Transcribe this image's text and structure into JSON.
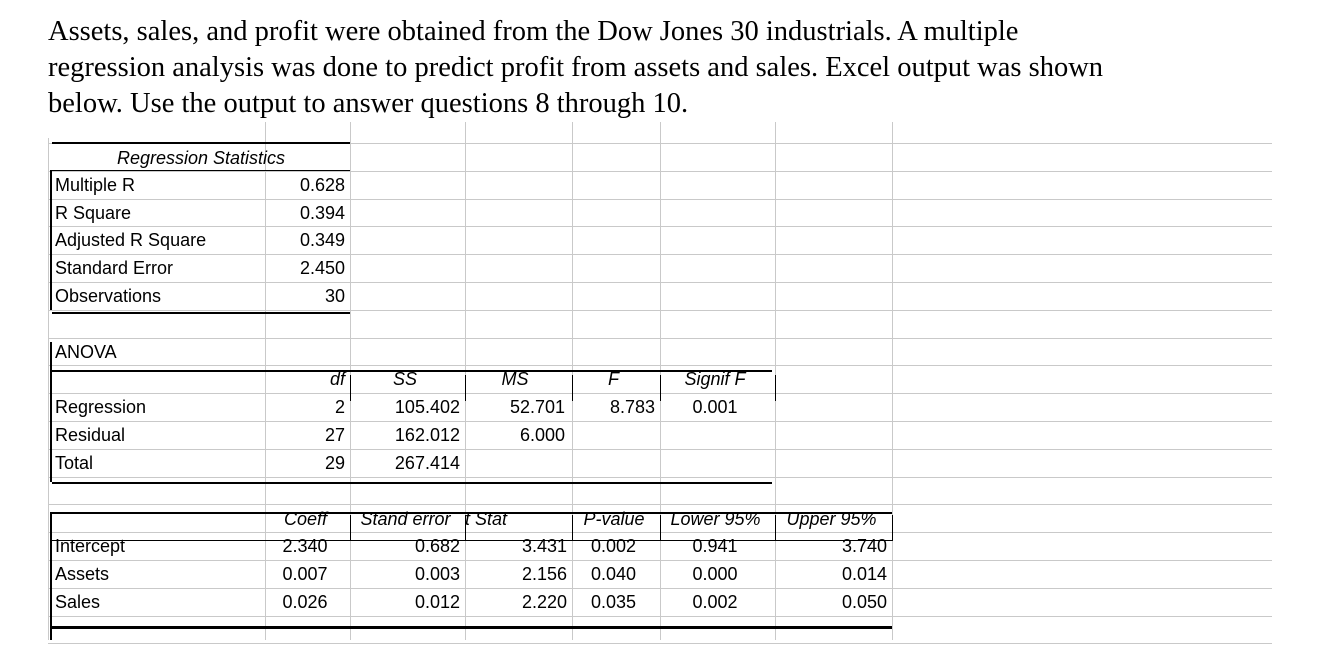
{
  "intro": {
    "line1": "Assets, sales, and profit were obtained from the Dow Jones 30 industrials.  A multiple",
    "line2": "regression analysis was done to predict profit from assets and sales. Excel output was shown",
    "line3": "below. Use the output to answer questions 8 through 10."
  },
  "regression_statistics": {
    "title": "Regression Statistics",
    "rows": [
      {
        "label": "Multiple R",
        "value": "0.628"
      },
      {
        "label": "R Square",
        "value": "0.394"
      },
      {
        "label": "Adjusted R Square",
        "value": "0.349"
      },
      {
        "label": "Standard Error",
        "value": "2.450"
      },
      {
        "label": "Observations",
        "value": "30"
      }
    ]
  },
  "anova": {
    "title": "ANOVA",
    "headers": [
      "df",
      "SS",
      "MS",
      "F",
      "Signif F"
    ],
    "rows": [
      {
        "label": "Regression",
        "df": "2",
        "ss": "105.402",
        "ms": "52.701",
        "f": "8.783",
        "signif": "0.001"
      },
      {
        "label": "Residual",
        "df": "27",
        "ss": "162.012",
        "ms": "6.000",
        "f": "",
        "signif": ""
      },
      {
        "label": "Total",
        "df": "29",
        "ss": "267.414",
        "ms": "",
        "f": "",
        "signif": ""
      }
    ]
  },
  "coefficients": {
    "headers": [
      "Coeff",
      "Stand error",
      "t Stat",
      "P-value",
      "Lower 95%",
      "Upper 95%"
    ],
    "rows": [
      {
        "label": "Intercept",
        "coeff": "2.340",
        "se": "0.682",
        "t": "3.431",
        "p": "0.002",
        "lower": "0.941",
        "upper": "3.740"
      },
      {
        "label": "Assets",
        "coeff": "0.007",
        "se": "0.003",
        "t": "2.156",
        "p": "0.040",
        "lower": "0.000",
        "upper": "0.014"
      },
      {
        "label": "Sales",
        "coeff": "0.026",
        "se": "0.012",
        "t": "2.220",
        "p": "0.035",
        "lower": "0.002",
        "upper": "0.050"
      }
    ]
  }
}
